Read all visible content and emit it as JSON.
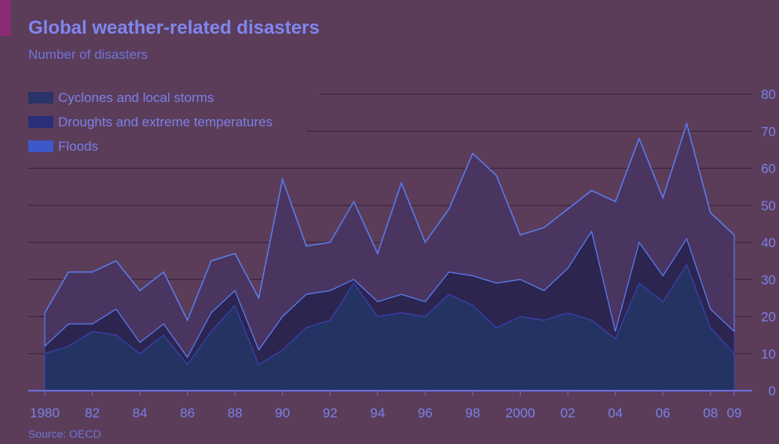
{
  "colors": {
    "background": "#5b3d5a",
    "accent": "#8a2c74",
    "text": "#7a80e8",
    "gridline": "#3a2440"
  },
  "chart_data": {
    "type": "area",
    "stacked": true,
    "title": "Global weather-related disasters",
    "subtitle": "Number of disasters",
    "source": "Source: OECD",
    "x": [
      1980,
      1981,
      1982,
      1983,
      1984,
      1985,
      1986,
      1987,
      1988,
      1989,
      1990,
      1991,
      1992,
      1993,
      1994,
      1995,
      1996,
      1997,
      1998,
      1999,
      2000,
      2001,
      2002,
      2003,
      2004,
      2005,
      2006,
      2007,
      2008,
      2009
    ],
    "x_tick_labels": [
      "1980",
      "82",
      "84",
      "86",
      "88",
      "90",
      "92",
      "94",
      "96",
      "98",
      "2000",
      "02",
      "04",
      "06",
      "08",
      "09"
    ],
    "x_tick_values": [
      1980,
      1982,
      1984,
      1986,
      1988,
      1990,
      1992,
      1994,
      1996,
      1998,
      2000,
      2002,
      2004,
      2006,
      2008,
      2009
    ],
    "y_ticks": [
      0,
      10,
      20,
      30,
      40,
      50,
      60,
      70,
      80
    ],
    "ylim": [
      0,
      80
    ],
    "grid": true,
    "legend_position": "top-left",
    "series": [
      {
        "name": "Cyclones and local storms",
        "color": "#243362",
        "values": [
          10,
          12,
          16,
          15,
          10,
          15,
          7,
          16,
          23,
          7,
          11,
          17,
          19,
          29,
          20,
          21,
          20,
          26,
          23,
          17,
          20,
          19,
          21,
          19,
          14,
          29,
          24,
          34,
          17,
          10
        ]
      },
      {
        "name": "Droughts and extreme temperatures",
        "color": "#2c2550",
        "values": [
          2,
          6,
          2,
          7,
          3,
          3,
          2,
          5,
          4,
          4,
          9,
          9,
          8,
          1,
          4,
          5,
          4,
          6,
          8,
          12,
          10,
          8,
          12,
          24,
          2,
          11,
          7,
          7,
          5,
          6
        ]
      },
      {
        "name": "Floods",
        "color": "#4a3560",
        "values": [
          9,
          14,
          14,
          13,
          14,
          14,
          10,
          14,
          10,
          14,
          37,
          13,
          13,
          21,
          13,
          30,
          16,
          17,
          33,
          29,
          12,
          17,
          16,
          11,
          35,
          28,
          21,
          31,
          26,
          26
        ]
      }
    ]
  }
}
